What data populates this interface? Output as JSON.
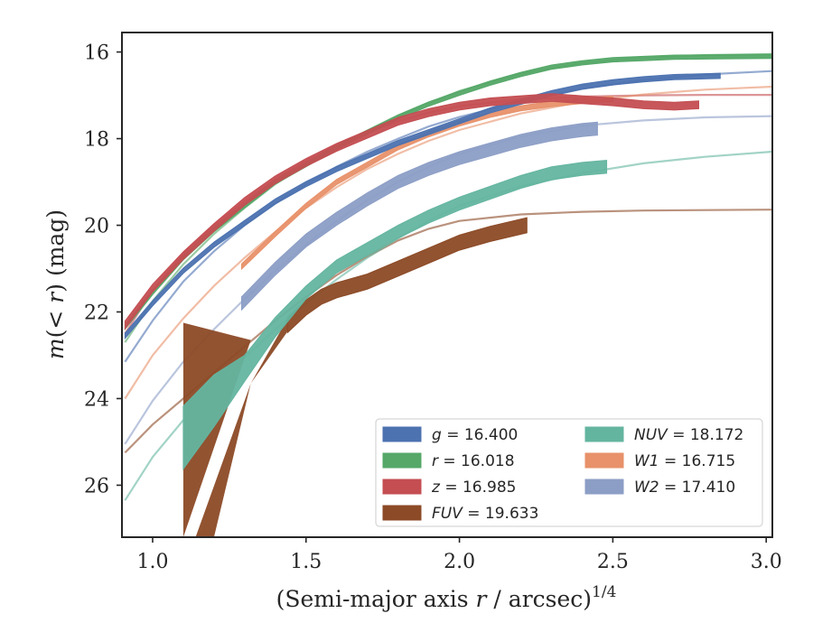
{
  "chart_data": {
    "type": "line",
    "xlabel_main": "(Semi-major axis ",
    "xlabel_var": "r",
    "xlabel_unit": " / arcsec)",
    "xlabel_exp": "1/4",
    "ylabel_main": "m(< ",
    "ylabel_var": "r",
    "ylabel_unit": ") (mag)",
    "xlim": [
      0.9,
      3.02
    ],
    "ylim": [
      27.2,
      15.55
    ],
    "y_inverted": true,
    "x_ticks": [
      1.0,
      1.5,
      2.0,
      2.5,
      3.0
    ],
    "x_tick_labels": [
      "1.0",
      "1.5",
      "2.0",
      "2.5",
      "3.0"
    ],
    "y_ticks": [
      16,
      18,
      20,
      22,
      24,
      26
    ],
    "y_tick_labels": [
      "16",
      "18",
      "20",
      "22",
      "24",
      "26"
    ],
    "grid": false,
    "legend_placement": "lower-right",
    "series": [
      {
        "name": "g",
        "legend_var": "g",
        "legend_value": " = 16.400",
        "color": "#4c72b0",
        "band_width": 0.12,
        "data": [
          [
            0.91,
            22.55
          ],
          [
            1.0,
            21.8
          ],
          [
            1.1,
            21.05
          ],
          [
            1.2,
            20.45
          ],
          [
            1.3,
            19.95
          ],
          [
            1.4,
            19.45
          ],
          [
            1.5,
            19.05
          ],
          [
            1.6,
            18.7
          ],
          [
            1.7,
            18.4
          ],
          [
            1.8,
            18.1
          ],
          [
            1.9,
            17.85
          ],
          [
            2.0,
            17.6
          ],
          [
            2.1,
            17.35
          ],
          [
            2.2,
            17.15
          ],
          [
            2.3,
            16.95
          ],
          [
            2.4,
            16.8
          ],
          [
            2.5,
            16.7
          ],
          [
            2.6,
            16.63
          ],
          [
            2.7,
            16.58
          ],
          [
            2.85,
            16.55
          ]
        ],
        "model": [
          [
            0.91,
            23.15
          ],
          [
            1.0,
            22.2
          ],
          [
            1.1,
            21.3
          ],
          [
            1.2,
            20.6
          ],
          [
            1.3,
            20.0
          ],
          [
            1.4,
            19.5
          ],
          [
            1.5,
            19.05
          ],
          [
            1.6,
            18.65
          ],
          [
            1.7,
            18.3
          ],
          [
            1.8,
            18.0
          ],
          [
            1.9,
            17.72
          ],
          [
            2.0,
            17.5
          ],
          [
            2.2,
            17.15
          ],
          [
            2.4,
            16.85
          ],
          [
            2.6,
            16.65
          ],
          [
            2.8,
            16.52
          ],
          [
            3.02,
            16.44
          ]
        ]
      },
      {
        "name": "r",
        "legend_var": "r",
        "legend_value": " = 16.018",
        "color": "#55a868",
        "band_width": 0.1,
        "data": [
          [
            0.91,
            22.35
          ],
          [
            1.0,
            21.55
          ],
          [
            1.1,
            20.75
          ],
          [
            1.2,
            20.1
          ],
          [
            1.3,
            19.55
          ],
          [
            1.4,
            19.0
          ],
          [
            1.5,
            18.6
          ],
          [
            1.6,
            18.2
          ],
          [
            1.7,
            17.85
          ],
          [
            1.8,
            17.5
          ],
          [
            1.9,
            17.2
          ],
          [
            2.0,
            16.95
          ],
          [
            2.1,
            16.72
          ],
          [
            2.2,
            16.52
          ],
          [
            2.3,
            16.35
          ],
          [
            2.4,
            16.25
          ],
          [
            2.5,
            16.18
          ],
          [
            2.6,
            16.15
          ],
          [
            2.7,
            16.12
          ],
          [
            2.85,
            16.11
          ],
          [
            3.02,
            16.1
          ]
        ],
        "model": [
          [
            0.91,
            22.7
          ],
          [
            1.0,
            21.75
          ],
          [
            1.1,
            20.9
          ],
          [
            1.2,
            20.2
          ],
          [
            1.3,
            19.6
          ],
          [
            1.4,
            19.05
          ],
          [
            1.5,
            18.6
          ],
          [
            1.6,
            18.2
          ],
          [
            1.7,
            17.82
          ],
          [
            1.8,
            17.48
          ],
          [
            1.9,
            17.18
          ],
          [
            2.0,
            16.9
          ],
          [
            2.2,
            16.5
          ],
          [
            2.4,
            16.25
          ],
          [
            2.6,
            16.13
          ],
          [
            2.8,
            16.07
          ],
          [
            3.02,
            16.05
          ]
        ]
      },
      {
        "name": "z",
        "legend_var": "z",
        "legend_value": " = 16.985",
        "color": "#c44e52",
        "band_width": 0.18,
        "data": [
          [
            0.91,
            22.3
          ],
          [
            1.0,
            21.45
          ],
          [
            1.1,
            20.7
          ],
          [
            1.2,
            20.05
          ],
          [
            1.3,
            19.45
          ],
          [
            1.4,
            18.95
          ],
          [
            1.5,
            18.55
          ],
          [
            1.6,
            18.2
          ],
          [
            1.7,
            17.9
          ],
          [
            1.8,
            17.6
          ],
          [
            1.9,
            17.4
          ],
          [
            2.0,
            17.25
          ],
          [
            2.1,
            17.15
          ],
          [
            2.2,
            17.1
          ],
          [
            2.3,
            17.05
          ],
          [
            2.4,
            17.1
          ],
          [
            2.5,
            17.15
          ],
          [
            2.6,
            17.22
          ],
          [
            2.7,
            17.25
          ],
          [
            2.78,
            17.22
          ]
        ],
        "model": [
          [
            0.91,
            22.5
          ],
          [
            1.0,
            21.5
          ],
          [
            1.1,
            20.65
          ],
          [
            1.2,
            20.0
          ],
          [
            1.3,
            19.45
          ],
          [
            1.4,
            18.95
          ],
          [
            1.5,
            18.52
          ],
          [
            1.6,
            18.15
          ],
          [
            1.7,
            17.85
          ],
          [
            1.8,
            17.6
          ],
          [
            1.9,
            17.4
          ],
          [
            2.0,
            17.25
          ],
          [
            2.2,
            17.1
          ],
          [
            2.4,
            17.03
          ],
          [
            2.6,
            17.0
          ],
          [
            2.8,
            16.99
          ],
          [
            3.02,
            16.99
          ]
        ]
      },
      {
        "name": "FUV",
        "legend_var": "FUV",
        "legend_value": " = 19.633",
        "color": "#8c4a26",
        "band_width": 0.35,
        "data": [
          [
            1.44,
            22.3
          ],
          [
            1.5,
            21.9
          ],
          [
            1.55,
            21.65
          ],
          [
            1.6,
            21.5
          ],
          [
            1.7,
            21.3
          ],
          [
            1.8,
            21.0
          ],
          [
            1.9,
            20.7
          ],
          [
            2.0,
            20.4
          ],
          [
            2.1,
            20.2
          ],
          [
            2.22,
            20.0
          ]
        ],
        "lower_triangle": {
          "x": [
            1.1,
            1.32
          ],
          "y_top": [
            22.25,
            22.65
          ],
          "y_bot": [
            27.2,
            22.65
          ]
        },
        "upper_wedge": {
          "x": [
            1.2,
            1.32,
            1.44
          ],
          "y_top": [
            27.2,
            23.65,
            22.15
          ],
          "y_bot": [
            27.2,
            23.65,
            22.45
          ]
        },
        "model": [
          [
            0.91,
            25.25
          ],
          [
            1.0,
            24.6
          ],
          [
            1.1,
            24.0
          ],
          [
            1.2,
            23.4
          ],
          [
            1.3,
            22.8
          ],
          [
            1.4,
            22.2
          ],
          [
            1.5,
            21.65
          ],
          [
            1.6,
            21.15
          ],
          [
            1.7,
            20.72
          ],
          [
            1.8,
            20.35
          ],
          [
            1.9,
            20.08
          ],
          [
            2.0,
            19.9
          ],
          [
            2.2,
            19.75
          ],
          [
            2.4,
            19.69
          ],
          [
            2.6,
            19.66
          ],
          [
            2.8,
            19.65
          ],
          [
            3.02,
            19.64
          ]
        ]
      },
      {
        "name": "NUV",
        "legend_var": "NUV",
        "legend_value": " = 18.172",
        "color": "#64b5a0",
        "band_width": 0.3,
        "data": [
          [
            1.1,
            24.9
          ],
          [
            1.2,
            24.05
          ],
          [
            1.3,
            23.3
          ],
          [
            1.4,
            22.35
          ],
          [
            1.5,
            21.55
          ],
          [
            1.6,
            20.95
          ],
          [
            1.7,
            20.55
          ],
          [
            1.8,
            20.15
          ],
          [
            1.9,
            19.8
          ],
          [
            2.0,
            19.5
          ],
          [
            2.1,
            19.25
          ],
          [
            2.2,
            19.0
          ],
          [
            2.3,
            18.8
          ],
          [
            2.4,
            18.7
          ],
          [
            2.48,
            18.65
          ]
        ],
        "width_override": [
          [
            1.1,
            1.45
          ],
          [
            1.2,
            1.2
          ],
          [
            1.3,
            0.6
          ],
          [
            1.4,
            0.45
          ],
          [
            1.5,
            0.3
          ]
        ],
        "model": [
          [
            0.91,
            26.35
          ],
          [
            1.0,
            25.35
          ],
          [
            1.1,
            24.5
          ],
          [
            1.2,
            23.75
          ],
          [
            1.3,
            23.05
          ],
          [
            1.4,
            22.4
          ],
          [
            1.5,
            21.8
          ],
          [
            1.6,
            21.25
          ],
          [
            1.7,
            20.75
          ],
          [
            1.8,
            20.3
          ],
          [
            1.9,
            19.9
          ],
          [
            2.0,
            19.55
          ],
          [
            2.2,
            19.1
          ],
          [
            2.4,
            18.8
          ],
          [
            2.6,
            18.57
          ],
          [
            2.8,
            18.42
          ],
          [
            3.02,
            18.3
          ]
        ]
      },
      {
        "name": "W1",
        "legend_var": "W1",
        "legend_value": " = 16.715",
        "color": "#e8916a",
        "band_width": 0.12,
        "data": [
          [
            1.29,
            20.95
          ],
          [
            1.4,
            20.2
          ],
          [
            1.5,
            19.55
          ],
          [
            1.6,
            19.0
          ],
          [
            1.7,
            18.6
          ],
          [
            1.8,
            18.2
          ],
          [
            1.9,
            17.9
          ],
          [
            2.0,
            17.65
          ],
          [
            2.1,
            17.45
          ],
          [
            2.2,
            17.3
          ],
          [
            2.3,
            17.2
          ],
          [
            2.4,
            17.13
          ],
          [
            2.5,
            17.08
          ]
        ],
        "model": [
          [
            0.91,
            24.0
          ],
          [
            1.0,
            23.0
          ],
          [
            1.1,
            22.15
          ],
          [
            1.2,
            21.4
          ],
          [
            1.3,
            20.75
          ],
          [
            1.4,
            20.15
          ],
          [
            1.5,
            19.6
          ],
          [
            1.6,
            19.12
          ],
          [
            1.7,
            18.7
          ],
          [
            1.8,
            18.35
          ],
          [
            1.9,
            18.05
          ],
          [
            2.0,
            17.8
          ],
          [
            2.2,
            17.42
          ],
          [
            2.4,
            17.15
          ],
          [
            2.6,
            16.98
          ],
          [
            2.8,
            16.87
          ],
          [
            3.02,
            16.8
          ]
        ]
      },
      {
        "name": "W2",
        "legend_var": "W2",
        "legend_value": " = 17.410",
        "color": "#8c9ec6",
        "band_width": 0.3,
        "data": [
          [
            1.29,
            21.8
          ],
          [
            1.4,
            21.0
          ],
          [
            1.5,
            20.35
          ],
          [
            1.6,
            19.85
          ],
          [
            1.7,
            19.4
          ],
          [
            1.8,
            19.0
          ],
          [
            1.9,
            18.7
          ],
          [
            2.0,
            18.45
          ],
          [
            2.1,
            18.25
          ],
          [
            2.2,
            18.05
          ],
          [
            2.3,
            17.9
          ],
          [
            2.4,
            17.8
          ],
          [
            2.45,
            17.77
          ]
        ],
        "model": [
          [
            0.91,
            25.05
          ],
          [
            1.0,
            24.05
          ],
          [
            1.1,
            23.15
          ],
          [
            1.2,
            22.4
          ],
          [
            1.3,
            21.7
          ],
          [
            1.4,
            21.05
          ],
          [
            1.5,
            20.45
          ],
          [
            1.6,
            19.9
          ],
          [
            1.7,
            19.42
          ],
          [
            1.8,
            19.0
          ],
          [
            1.9,
            18.65
          ],
          [
            2.0,
            18.35
          ],
          [
            2.2,
            17.95
          ],
          [
            2.4,
            17.7
          ],
          [
            2.6,
            17.58
          ],
          [
            2.8,
            17.51
          ],
          [
            3.02,
            17.48
          ]
        ]
      }
    ]
  }
}
